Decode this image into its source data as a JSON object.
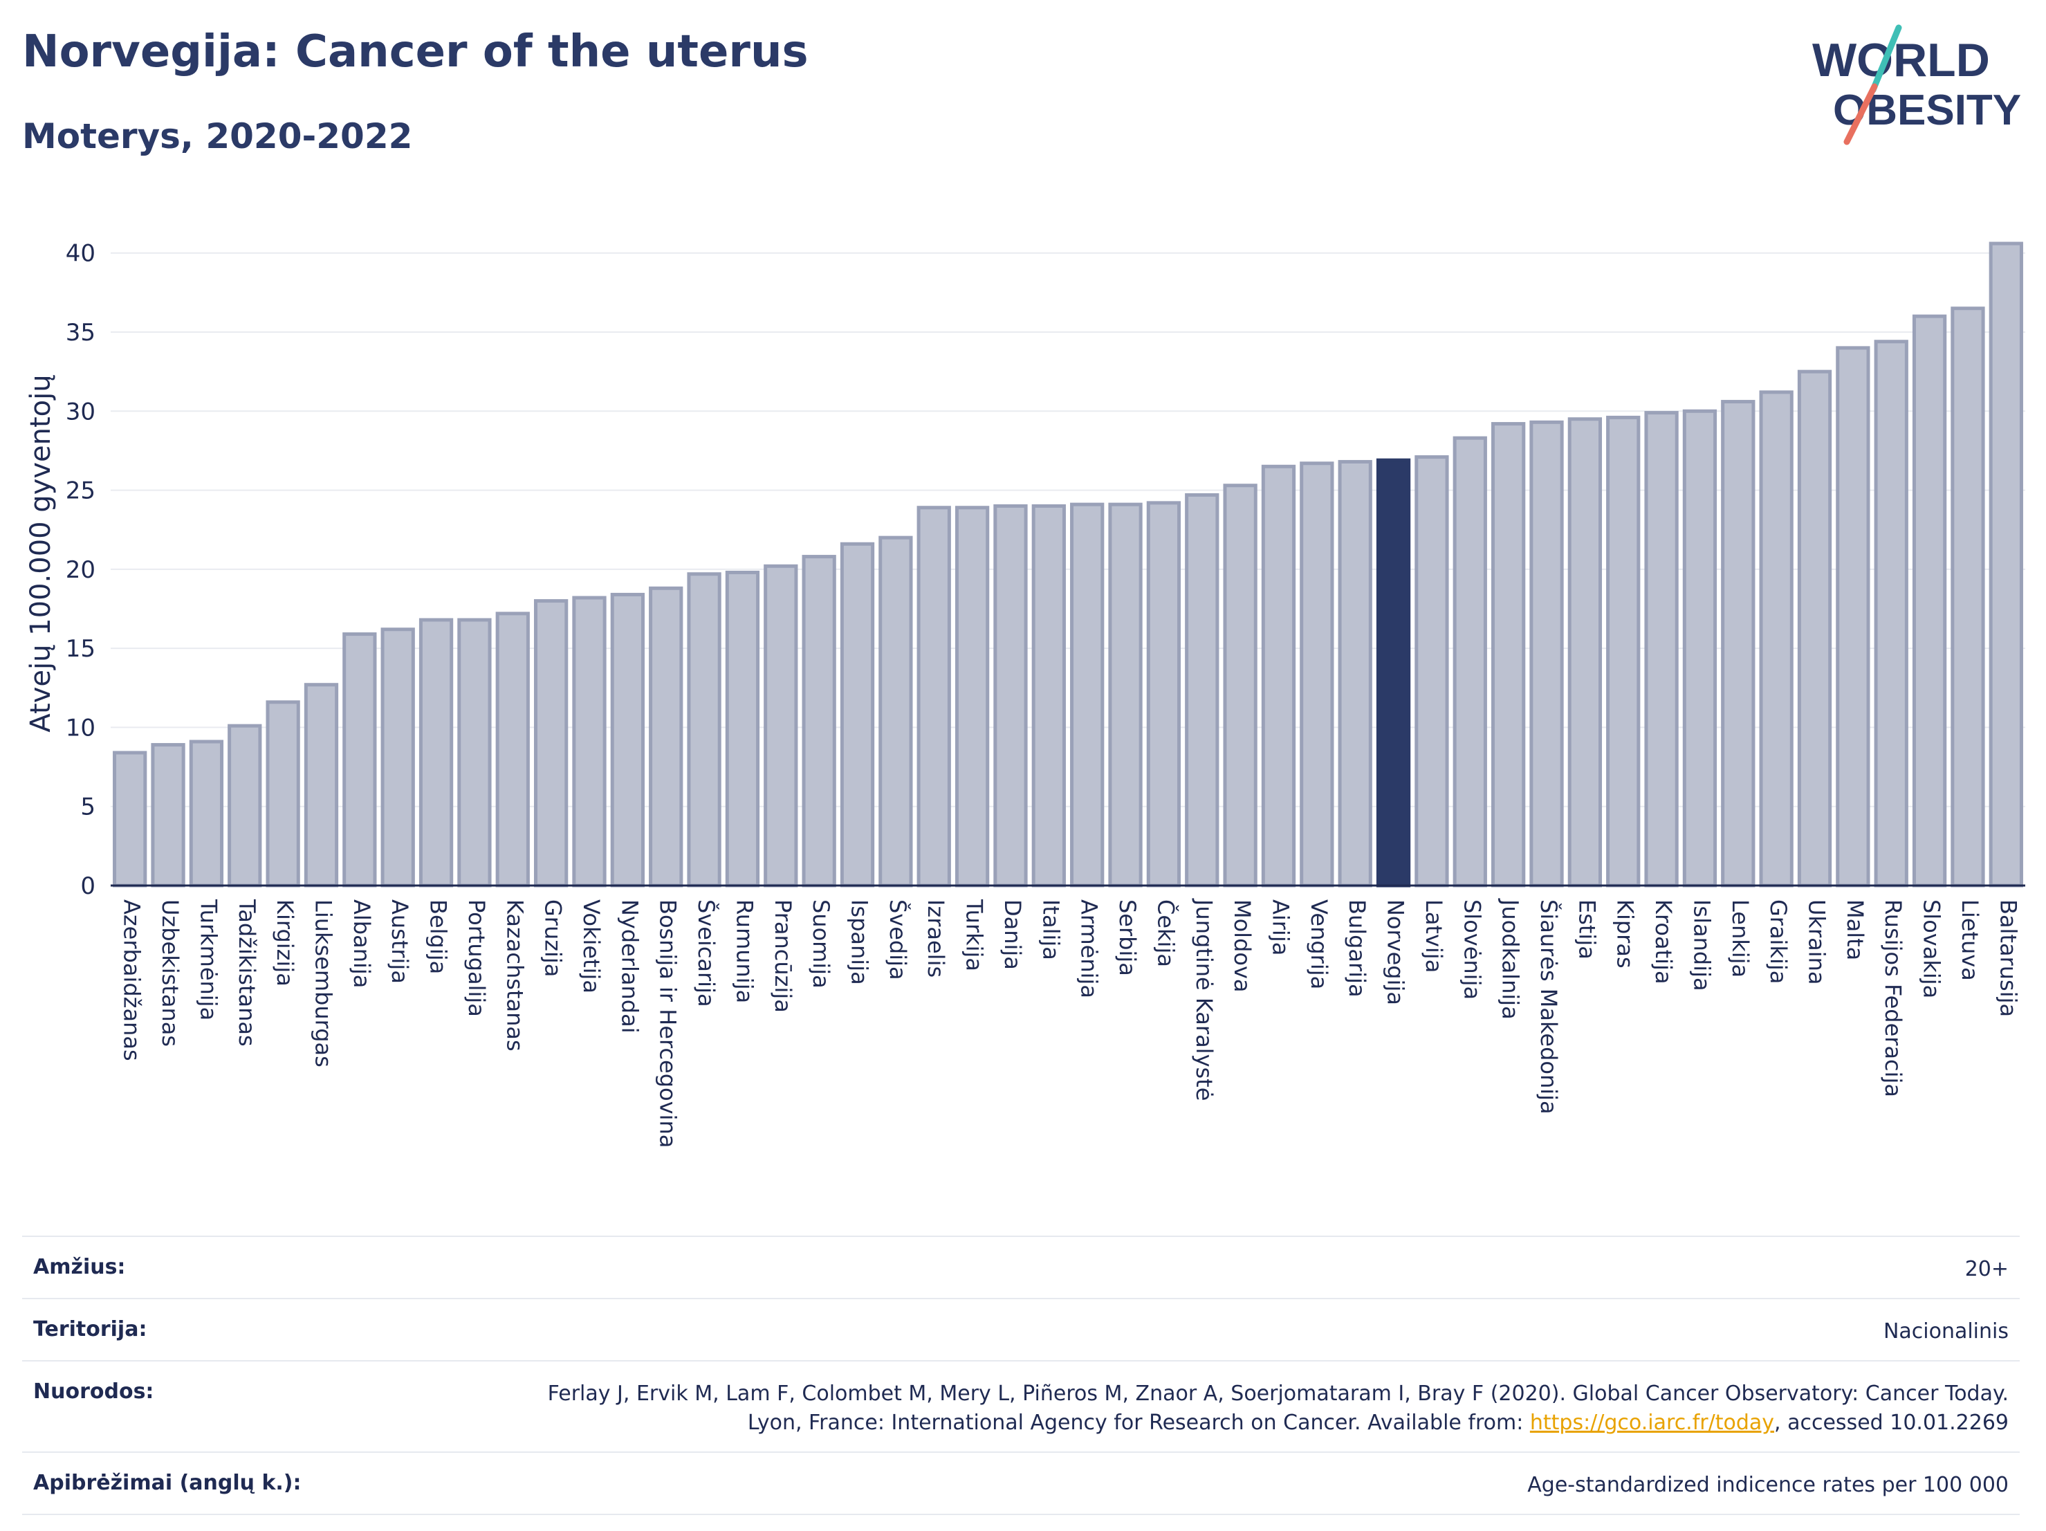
{
  "header": {
    "title": "Norvegija: Cancer of the uterus",
    "subtitle": "Moterys, 2020-2022"
  },
  "logo": {
    "line1": "WORLD",
    "line2": "OBESITY"
  },
  "chart_data": {
    "type": "bar",
    "ylabel": "Atvejų 100.000 gyventojų",
    "xlabel": "",
    "ylim": [
      0,
      42
    ],
    "yticks": [
      0,
      5,
      10,
      15,
      20,
      25,
      30,
      35,
      40
    ],
    "grid": true,
    "highlight": "Norvegija",
    "colors": {
      "bar": "#bcc1d0",
      "bar_border": "#9aa1b8",
      "highlight": "#2b3a67"
    },
    "categories": [
      "Azerbaidžanas",
      "Uzbekistanas",
      "Turkmėnija",
      "Tadžikistanas",
      "Kirgizija",
      "Liuksemburgas",
      "Albanija",
      "Austrija",
      "Belgija",
      "Portugalija",
      "Kazachstanas",
      "Gruzija",
      "Vokietija",
      "Nyderlandai",
      "Bosnija ir Hercegovina",
      "Šveicarija",
      "Rumunija",
      "Prancūzija",
      "Suomija",
      "Ispanija",
      "Švedija",
      "Izraelis",
      "Turkija",
      "Danija",
      "Italija",
      "Armėnija",
      "Serbija",
      "Čekija",
      "Jungtinė Karalystė",
      "Moldova",
      "Airija",
      "Vengrija",
      "Bulgarija",
      "Norvegija",
      "Latvija",
      "Slovėnija",
      "Juodkalnija",
      "Šiaurės Makedonija",
      "Estija",
      "Kipras",
      "Kroatija",
      "Islandija",
      "Lenkija",
      "Graikija",
      "Ukraina",
      "Malta",
      "Rusijos Federacija",
      "Slovakija",
      "Lietuva",
      "Baltarusija"
    ],
    "values": [
      8.4,
      8.9,
      9.1,
      10.1,
      11.6,
      12.7,
      15.9,
      16.2,
      16.8,
      16.8,
      17.2,
      18.0,
      18.2,
      18.4,
      18.8,
      19.7,
      19.8,
      20.2,
      20.8,
      21.6,
      22.0,
      23.9,
      23.9,
      24.0,
      24.0,
      24.1,
      24.1,
      24.2,
      24.7,
      25.3,
      26.5,
      26.7,
      26.8,
      26.9,
      27.1,
      28.3,
      29.2,
      29.3,
      29.5,
      29.6,
      29.9,
      30.0,
      30.6,
      31.2,
      32.5,
      34.0,
      34.4,
      36.0,
      36.5,
      40.6
    ]
  },
  "meta": {
    "age_label": "Amžius:",
    "age_value": "20+",
    "territory_label": "Teritorija:",
    "territory_value": "Nacionalinis",
    "refs_label": "Nuorodos:",
    "refs_text": "Ferlay J, Ervik M, Lam F, Colombet M, Mery L, Piñeros M, Znaor A, Soerjomataram I, Bray F (2020). Global Cancer Observatory: Cancer Today. Lyon, France: International Agency for Research on Cancer. Available from: ",
    "refs_link": "https://gco.iarc.fr/today",
    "refs_tail": ", accessed 10.01.2269",
    "defs_label": "Apibrėžimai (anglų k.):",
    "defs_value": "Age-standardized indicence rates per 100 000"
  }
}
